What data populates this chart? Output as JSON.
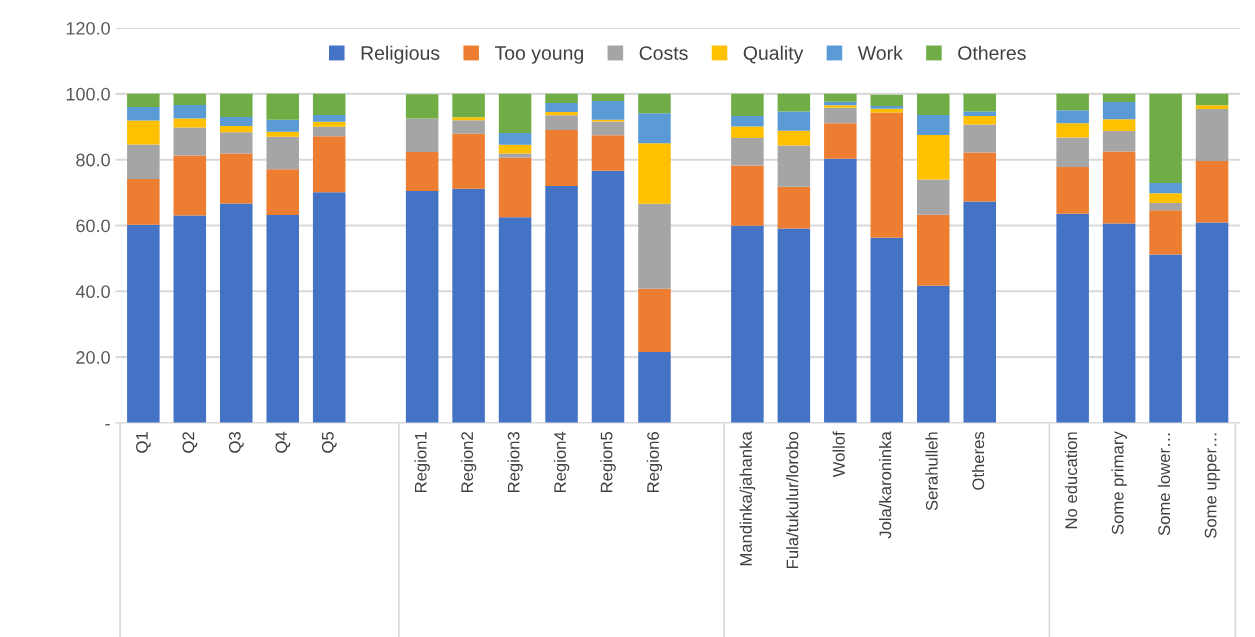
{
  "chart_data": {
    "type": "bar",
    "stacked": true,
    "categories": [
      "Q1",
      "Q2",
      "Q3",
      "Q4",
      "Q5",
      null,
      "Region1",
      "Region2",
      "Region3",
      "Region4",
      "Region5",
      "Region6",
      null,
      "Mandinka/jahanka",
      "Fula/tukulur/lorobo",
      "Wollof",
      "Jola/karoninka",
      "Serahulleh",
      "Otheres",
      null,
      "No education",
      "Some primary",
      "Some lower…",
      "Some upper…"
    ],
    "series": [
      {
        "name": "Religious",
        "color": "#4472c4",
        "values": [
          60.2,
          63.0,
          66.7,
          63.2,
          70.1,
          null,
          70.5,
          71.2,
          62.5,
          72.0,
          76.6,
          21.6,
          null,
          59.9,
          59.1,
          80.3,
          56.3,
          41.7,
          67.3,
          null,
          63.6,
          60.6,
          51.2,
          60.9
        ]
      },
      {
        "name": "Too young",
        "color": "#ed7d31",
        "values": [
          13.9,
          18.3,
          15.2,
          13.9,
          17.0,
          null,
          11.8,
          16.7,
          18.1,
          17.0,
          10.8,
          19.2,
          null,
          18.3,
          12.7,
          10.8,
          38.0,
          21.6,
          14.9,
          null,
          14.2,
          21.9,
          13.4,
          18.7
        ]
      },
      {
        "name": "Costs",
        "color": "#a5a5a5",
        "values": [
          10.5,
          8.5,
          6.4,
          9.9,
          2.9,
          null,
          10.2,
          4.1,
          1.3,
          4.5,
          4.2,
          25.8,
          null,
          8.4,
          12.5,
          4.7,
          null,
          10.7,
          8.5,
          null,
          8.9,
          6.2,
          2.2,
          15.8
        ]
      },
      {
        "name": "Quality",
        "color": "#ffc000",
        "values": [
          7.3,
          2.7,
          1.9,
          1.5,
          1.5,
          null,
          null,
          0.9,
          2.6,
          1.0,
          0.5,
          18.4,
          null,
          3.5,
          4.5,
          0.7,
          1.2,
          13.5,
          2.6,
          null,
          4.4,
          3.6,
          3.0,
          1.1
        ]
      },
      {
        "name": "Work",
        "color": "#5b9bd5",
        "values": [
          4.1,
          4.1,
          2.8,
          3.6,
          2.1,
          null,
          0,
          0,
          3.6,
          2.7,
          5.7,
          9.1,
          null,
          3.2,
          5.8,
          1.1,
          0.8,
          6.1,
          1.3,
          null,
          3.9,
          5.2,
          3.1,
          0
        ]
      },
      {
        "name": "Otheres",
        "color": "#70ad47",
        "values": [
          4.0,
          3.4,
          7.0,
          7.9,
          6.4,
          null,
          7.4,
          7.1,
          11.9,
          2.8,
          2.2,
          5.9,
          null,
          6.7,
          5.4,
          2.4,
          3.4,
          6.4,
          5.4,
          null,
          5.0,
          2.5,
          27.1,
          3.5
        ]
      }
    ],
    "ylim": [
      0,
      120
    ],
    "yticks": [
      {
        "value": 0,
        "label": "-"
      },
      {
        "value": 20,
        "label": "20.0"
      },
      {
        "value": 40,
        "label": "40.0"
      },
      {
        "value": 60,
        "label": "60.0"
      },
      {
        "value": 80,
        "label": "80.0"
      },
      {
        "value": 100,
        "label": "100.0"
      },
      {
        "value": 120,
        "label": "120.0"
      }
    ],
    "grid": "y",
    "legend": "top"
  }
}
